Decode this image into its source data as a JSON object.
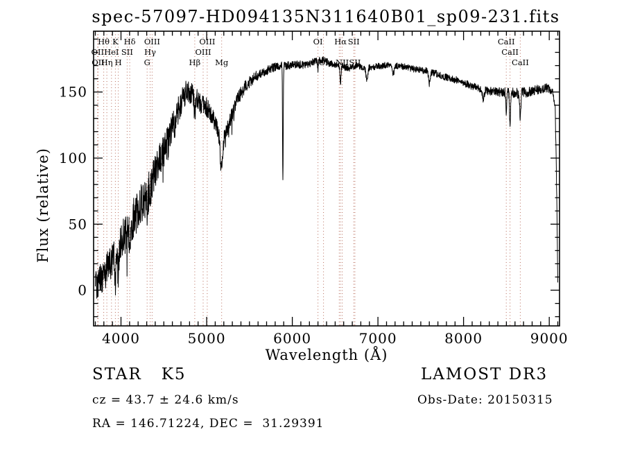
{
  "footer": {
    "class_label": "STAR   K5",
    "survey": "LAMOST DR3",
    "cz": "cz = 43.7 ± 24.6 km/s",
    "obs_date": "Obs-Date: 20150315",
    "coords": "RA = 146.71224, DEC =  31.29391"
  },
  "chart_data": {
    "type": "line",
    "title": "spec-57097-HD094135N311640B01_sp09-231.fits",
    "xlabel": "Wavelength (Å)",
    "ylabel": "Flux (relative)",
    "xlim": [
      3680,
      9120
    ],
    "ylim": [
      -27,
      196
    ],
    "xticks": [
      4000,
      5000,
      6000,
      7000,
      8000,
      9000
    ],
    "yticks": [
      0,
      50,
      100,
      150
    ],
    "x_minor_step": 100,
    "y_minor_step": 10,
    "legend": "none",
    "grid": false,
    "colors": {
      "spectrum": "#000000",
      "marker_line": "#b05a48",
      "marker_label": "#8b2020",
      "axis": "#000000"
    },
    "series_name": "flux",
    "continuum_points": [
      [
        3690,
        4
      ],
      [
        3750,
        8
      ],
      [
        3820,
        14
      ],
      [
        3900,
        24
      ],
      [
        3980,
        33
      ],
      [
        4060,
        45
      ],
      [
        4140,
        54
      ],
      [
        4220,
        63
      ],
      [
        4300,
        74
      ],
      [
        4380,
        86
      ],
      [
        4460,
        98
      ],
      [
        4540,
        110
      ],
      [
        4620,
        126
      ],
      [
        4700,
        141
      ],
      [
        4760,
        151
      ],
      [
        4820,
        148
      ],
      [
        4880,
        144
      ],
      [
        4950,
        141
      ],
      [
        5020,
        137
      ],
      [
        5090,
        127
      ],
      [
        5160,
        118
      ],
      [
        5230,
        120
      ],
      [
        5300,
        134
      ],
      [
        5380,
        147
      ],
      [
        5460,
        155
      ],
      [
        5560,
        161
      ],
      [
        5660,
        165
      ],
      [
        5760,
        168
      ],
      [
        5860,
        170
      ],
      [
        5960,
        170
      ],
      [
        6060,
        171
      ],
      [
        6160,
        170
      ],
      [
        6260,
        173
      ],
      [
        6360,
        174
      ],
      [
        6460,
        171
      ],
      [
        6560,
        170
      ],
      [
        6660,
        168
      ],
      [
        6760,
        170
      ],
      [
        6860,
        168
      ],
      [
        6960,
        169
      ],
      [
        7080,
        170
      ],
      [
        7200,
        170
      ],
      [
        7320,
        169
      ],
      [
        7440,
        167
      ],
      [
        7560,
        166
      ],
      [
        7680,
        164
      ],
      [
        7800,
        161
      ],
      [
        7920,
        159
      ],
      [
        8040,
        156
      ],
      [
        8160,
        153
      ],
      [
        8280,
        151
      ],
      [
        8400,
        150
      ],
      [
        8520,
        150
      ],
      [
        8640,
        149
      ],
      [
        8760,
        150
      ],
      [
        8880,
        152
      ],
      [
        8980,
        153
      ],
      [
        9040,
        151
      ],
      [
        9070,
        140
      ],
      [
        9090,
        60
      ],
      [
        9100,
        5
      ]
    ],
    "absorption_features": [
      [
        3934,
        22,
        7
      ],
      [
        3968,
        20,
        7
      ],
      [
        4102,
        12,
        6
      ],
      [
        4305,
        15,
        10
      ],
      [
        4340,
        10,
        6
      ],
      [
        4861,
        12,
        7
      ],
      [
        5175,
        26,
        16
      ],
      [
        5890,
        88,
        4
      ],
      [
        6300,
        6,
        4
      ],
      [
        6563,
        13,
        6
      ],
      [
        6870,
        9,
        10
      ],
      [
        7180,
        6,
        12
      ],
      [
        7600,
        9,
        9
      ],
      [
        8230,
        7,
        10
      ],
      [
        8498,
        15,
        5
      ],
      [
        8542,
        24,
        6
      ],
      [
        8662,
        20,
        6
      ]
    ],
    "noise_profile": [
      [
        3690,
        12
      ],
      [
        4100,
        16
      ],
      [
        4500,
        14
      ],
      [
        4800,
        9
      ],
      [
        5100,
        7
      ],
      [
        5400,
        5
      ],
      [
        5700,
        3.5
      ],
      [
        6100,
        3
      ],
      [
        6800,
        2.5
      ],
      [
        7600,
        2.5
      ],
      [
        8200,
        3
      ],
      [
        8700,
        4
      ],
      [
        9100,
        3
      ]
    ],
    "spectral_lines": [
      {
        "wl": 3727,
        "label": "OII",
        "row": 2
      },
      {
        "wl": 3733,
        "label": "OII",
        "row": 3
      },
      {
        "wl": 3798,
        "label": "Hθ",
        "row": 1
      },
      {
        "wl": 3835,
        "label": "Hη",
        "row": 3
      },
      {
        "wl": 3889,
        "label": "HeI",
        "row": 2
      },
      {
        "wl": 3934,
        "label": "K",
        "row": 1
      },
      {
        "wl": 3968,
        "label": "H",
        "row": 3
      },
      {
        "wl": 4072,
        "label": "SII",
        "row": 2
      },
      {
        "wl": 4102,
        "label": "Hδ",
        "row": 1
      },
      {
        "wl": 4305,
        "label": "G",
        "row": 3
      },
      {
        "wl": 4340,
        "label": "Hγ",
        "row": 2
      },
      {
        "wl": 4363,
        "label": "OIII",
        "row": 1
      },
      {
        "wl": 4861,
        "label": "Hβ",
        "row": 3
      },
      {
        "wl": 4959,
        "label": "OIII",
        "row": 2
      },
      {
        "wl": 5007,
        "label": "OIII",
        "row": 1
      },
      {
        "wl": 5175,
        "label": "Mg",
        "row": 3
      },
      {
        "wl": 6300,
        "label": "OI",
        "row": 1
      },
      {
        "wl": 6364,
        "label": "OI",
        "row": 3
      },
      {
        "wl": 6548,
        "label": "",
        "row": 0
      },
      {
        "wl": 6563,
        "label": "Hα",
        "row": 1
      },
      {
        "wl": 6583,
        "label": "NII",
        "row": 3
      },
      {
        "wl": 6717,
        "label": "SII",
        "row": 1
      },
      {
        "wl": 6731,
        "label": "SII",
        "row": 3
      },
      {
        "wl": 8498,
        "label": "CaII",
        "row": 1
      },
      {
        "wl": 8542,
        "label": "CaII",
        "row": 2
      },
      {
        "wl": 8662,
        "label": "CaII",
        "row": 3
      }
    ]
  }
}
